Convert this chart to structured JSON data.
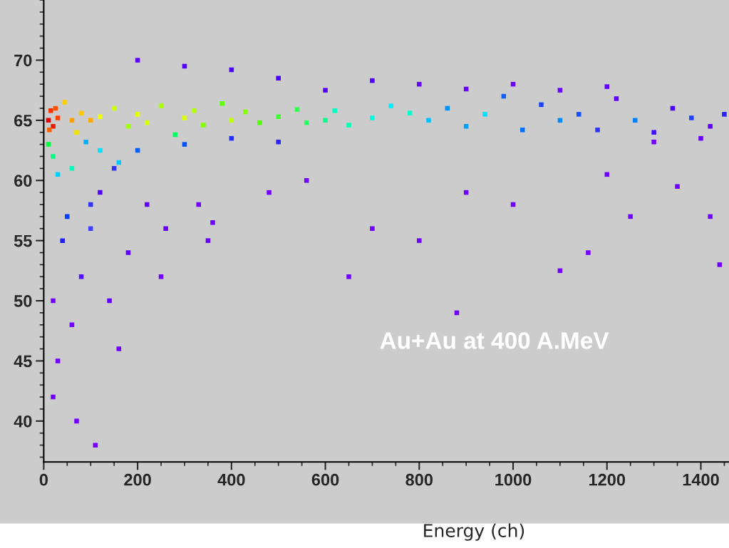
{
  "chart_data": {
    "type": "scatter",
    "xlabel": "Energy (ch)",
    "marker": "square",
    "annotations": [
      "Au+Au at 400 A.MeV"
    ],
    "xlim": [
      0,
      1460
    ],
    "ylim": [
      36.6,
      75
    ],
    "xticks": [
      0,
      200,
      400,
      600,
      800,
      1000,
      1200,
      1400
    ],
    "yticks": [
      40,
      45,
      50,
      55,
      60,
      65,
      70
    ],
    "x": [
      10,
      15,
      20,
      25,
      30,
      12,
      60,
      80,
      100,
      45,
      70,
      120,
      150,
      200,
      220,
      180,
      250,
      300,
      320,
      340,
      380,
      400,
      430,
      460,
      500,
      540,
      280,
      560,
      600,
      620,
      650,
      700,
      740,
      780,
      120,
      160,
      60,
      30,
      20,
      10,
      90,
      820,
      860,
      900,
      940,
      980,
      1020,
      1060,
      1100,
      300,
      400,
      500,
      200,
      50,
      40,
      80,
      100,
      20,
      1140,
      1180,
      1220,
      1260,
      1300,
      1340,
      1380,
      1420,
      1450,
      1000,
      1100,
      1200,
      1300,
      1400,
      800,
      900,
      600,
      700,
      500,
      400,
      300,
      200,
      150,
      120,
      100,
      60,
      30,
      180,
      140,
      220,
      260,
      330,
      350,
      250,
      160,
      20,
      70,
      110,
      900,
      1000,
      1200,
      1350,
      1420,
      700,
      800,
      650,
      1100,
      1250,
      480,
      560,
      880,
      360,
      1160,
      1440
    ],
    "values": [
      65,
      65.8,
      64.5,
      66,
      65.2,
      64.2,
      65,
      65.6,
      65,
      66.5,
      64,
      65.3,
      66,
      65.5,
      64.8,
      64.5,
      66.2,
      65.2,
      65.8,
      64.6,
      66.4,
      65,
      65.7,
      64.8,
      65.3,
      65.9,
      63.8,
      64.8,
      65,
      65.8,
      64.6,
      65.2,
      66.2,
      65.6,
      62.5,
      61.5,
      61,
      60.5,
      62,
      63,
      63.2,
      65,
      66,
      64.5,
      65.5,
      67,
      64.2,
      66.3,
      65,
      63,
      63.5,
      63.2,
      62.5,
      57,
      55,
      52,
      58,
      50,
      65.5,
      64.2,
      66.8,
      65,
      64,
      66,
      65.2,
      64.5,
      65.5,
      68,
      67.5,
      67.8,
      63.2,
      63.5,
      68,
      67.6,
      67.5,
      68.3,
      68.5,
      69.2,
      69.5,
      70,
      61,
      59,
      56,
      48,
      45,
      54,
      50,
      58,
      56,
      58,
      55,
      52,
      46,
      42,
      40,
      38,
      59,
      58,
      60.5,
      59.5,
      57,
      56,
      55,
      52,
      52.5,
      57,
      59,
      60,
      49,
      56.5,
      54,
      53
    ],
    "colors": [
      "#e60000",
      "#ff3000",
      "#e61e00",
      "#ff5000",
      "#ff4000",
      "#ff6000",
      "#ffa000",
      "#ffc800",
      "#ffaa00",
      "#ffd000",
      "#f0e000",
      "#eeff00",
      "#c8ff00",
      "#e6ff00",
      "#d8ff00",
      "#a0ff00",
      "#aaff00",
      "#dcff00",
      "#b4ff00",
      "#80ff00",
      "#60ff00",
      "#c0ff00",
      "#88ff00",
      "#50ff00",
      "#40ff30",
      "#30ff50",
      "#00ff60",
      "#20ff60",
      "#00ff90",
      "#00ffc0",
      "#00ffb0",
      "#00ffe0",
      "#00f0ff",
      "#00ffd0",
      "#00e0ff",
      "#00c8ff",
      "#00ffc0",
      "#00d0ff",
      "#00ff80",
      "#00ff40",
      "#00b0ff",
      "#00c0ff",
      "#0090ff",
      "#00a0ff",
      "#00e0ff",
      "#1060ff",
      "#0070ff",
      "#2040ff",
      "#0088ff",
      "#0050ff",
      "#2030ff",
      "#3020ff",
      "#0060ff",
      "#0040ff",
      "#2020ff",
      "#5010ff",
      "#3030ff",
      "#7000ff",
      "#1050ff",
      "#3030ff",
      "#6000ff",
      "#0080ff",
      "#4010ff",
      "#5000ff",
      "#2040ff",
      "#6000ff",
      "#3020ff",
      "#7000ff",
      "#6a00ff",
      "#6000ff",
      "#7000ff",
      "#6800ff",
      "#6600ff",
      "#6600ff",
      "#5500ff",
      "#5000ff",
      "#4400ff",
      "#5000ff",
      "#5500ff",
      "#6000ff",
      "#3333ff",
      "#5500ff",
      "#4040ff",
      "#7000ff",
      "#7000ff",
      "#6000ff",
      "#6000ff",
      "#6600ff",
      "#6600ff",
      "#7000ff",
      "#6600ff",
      "#7000ff",
      "#7000ff",
      "#7000ff",
      "#7000ff",
      "#7000ff",
      "#7000ff",
      "#7000ff",
      "#7000ff",
      "#7000ff",
      "#7000ff",
      "#7000ff",
      "#7000ff",
      "#7000ff",
      "#7000ff",
      "#7000ff",
      "#7000ff",
      "#7000ff",
      "#7000ff",
      "#7000ff",
      "#7000ff",
      "#7000ff"
    ]
  }
}
